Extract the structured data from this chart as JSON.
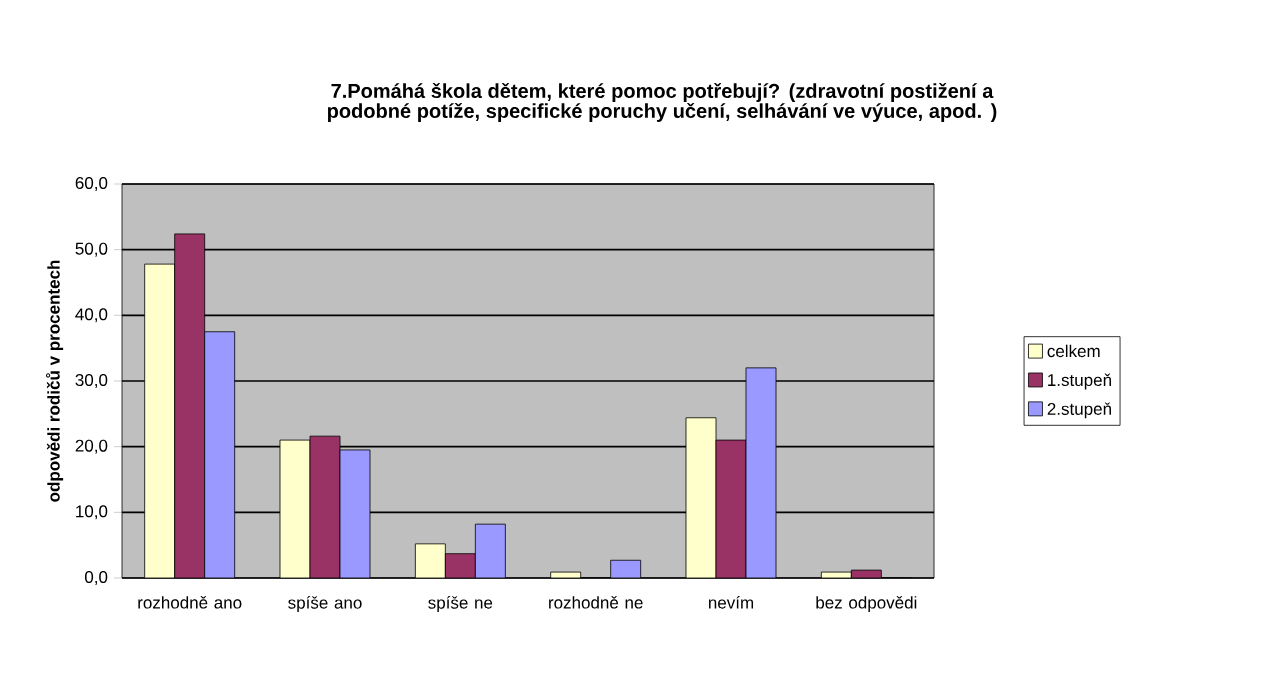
{
  "chart_data": {
    "type": "bar",
    "title": "7.Pomáhá škola dětem, které pomoc potřebují? (zdravotní postižení a podobné potíže, specifické poruchy učení, selhávání ve výuce, apod. )",
    "ylabel": "odpovědi rodičů v procentech",
    "categories": [
      "rozhodně ano",
      "spíše ano",
      "spíše ne",
      "rozhodně ne",
      "nevím",
      "bez odpovědi"
    ],
    "series": [
      {
        "name": "celkem",
        "color": "#ffffcc",
        "values": [
          47.8,
          21.0,
          5.2,
          0.9,
          24.4,
          0.9
        ]
      },
      {
        "name": "1.stupeň",
        "color": "#993366",
        "values": [
          52.4,
          21.6,
          3.7,
          0,
          21.0,
          1.2
        ]
      },
      {
        "name": "2.stupeň",
        "color": "#9999ff",
        "values": [
          37.5,
          19.5,
          8.2,
          2.7,
          32.0,
          0
        ]
      }
    ],
    "ylim": [
      0,
      60
    ],
    "yticks": [
      {
        "value": 0,
        "label": "0,0"
      },
      {
        "value": 10,
        "label": "10,0"
      },
      {
        "value": 20,
        "label": "20,0"
      },
      {
        "value": 30,
        "label": "30,0"
      },
      {
        "value": 40,
        "label": "40,0"
      },
      {
        "value": 50,
        "label": "50,0"
      },
      {
        "value": 60,
        "label": "60,0"
      }
    ],
    "grid": "y",
    "legend": "right"
  }
}
